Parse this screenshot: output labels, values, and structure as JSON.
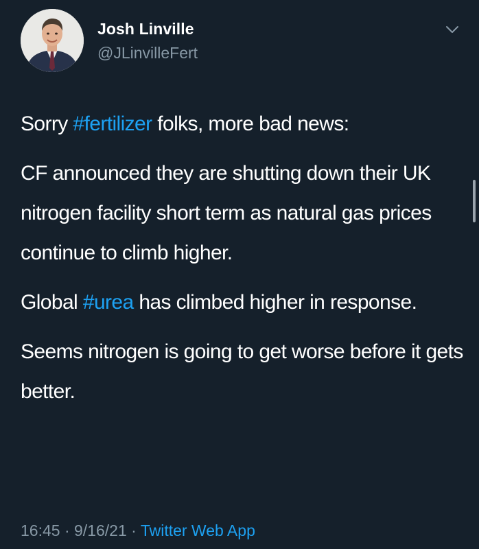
{
  "tweet": {
    "author": {
      "name": "Josh Linville",
      "handle": "@JLinvilleFert",
      "avatar_icon": "profile-photo-man-in-suit"
    },
    "menu_icon": "chevron-down-icon",
    "paragraphs": [
      {
        "parts": [
          "Sorry ",
          "#fertilizer",
          " folks, more bad news:"
        ]
      },
      {
        "parts": [
          "CF announced they are shutting down their UK nitrogen facility short term as natural gas prices continue to climb higher."
        ]
      },
      {
        "parts": [
          "Global ",
          "#urea",
          " has climbed higher in response."
        ]
      },
      {
        "parts": [
          "Seems nitrogen is going to get worse before it gets better."
        ]
      }
    ],
    "hashtags": [
      "#fertilizer",
      "#urea"
    ],
    "meta": {
      "time": "16:45",
      "separator": "·",
      "date": "9/16/21",
      "source": "Twitter Web App"
    }
  },
  "colors": {
    "background": "#15202b",
    "text": "#ffffff",
    "secondary": "#8899a6",
    "accent": "#1da1f2"
  }
}
